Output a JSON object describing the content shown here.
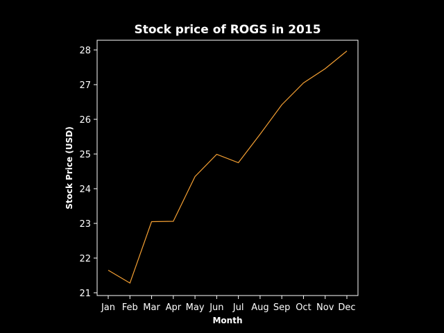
{
  "chart_data": {
    "type": "line",
    "title": "Stock price of ROGS in 2015",
    "xlabel": "Month",
    "ylabel": "Stock Price (USD)",
    "categories": [
      "Jan",
      "Feb",
      "Mar",
      "Apr",
      "May",
      "Jun",
      "Jul",
      "Aug",
      "Sep",
      "Oct",
      "Nov",
      "Dec"
    ],
    "series": [
      {
        "values": [
          21.65,
          21.28,
          23.05,
          23.06,
          24.35,
          24.99,
          24.75,
          25.57,
          26.42,
          27.05,
          27.46,
          27.97
        ]
      }
    ],
    "ylim": [
      20.92,
      28.28
    ],
    "yticks": [
      21,
      22,
      23,
      24,
      25,
      26,
      27,
      28
    ],
    "grid": false,
    "legend": "none",
    "colors": {
      "background": "#000000",
      "line": "#f5a033",
      "axes": "#ffffff",
      "text": "#ffffff"
    }
  }
}
